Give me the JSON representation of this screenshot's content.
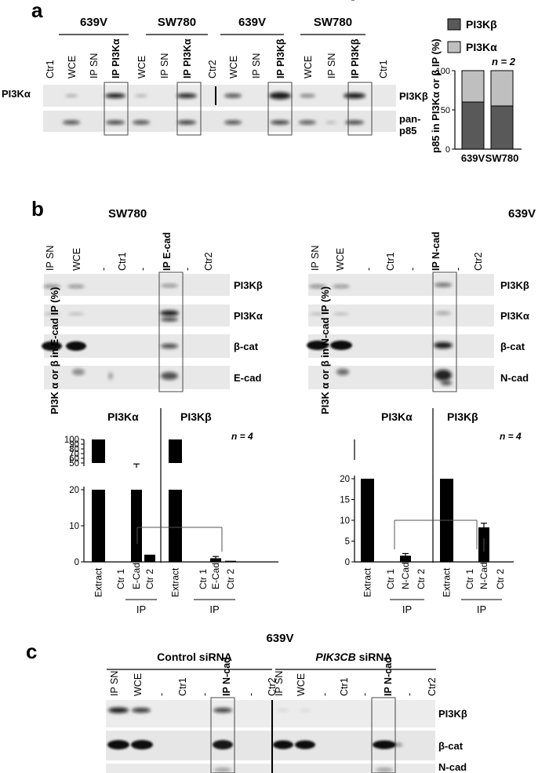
{
  "figure": {
    "panel_a": {
      "letter": "a",
      "group_labels": [
        "639V",
        "SW780",
        "639V",
        "SW780"
      ],
      "lanes": [
        "Ctr1",
        "WCE",
        "IP SN",
        "IP PI3Kα",
        "WCE",
        "IP SN",
        "IP PI3Kα",
        "Ctr2",
        "WCE",
        "IP SN",
        "IP PI3Kβ",
        "WCE",
        "IP SN",
        "IP PI3Kβ",
        "Ctr1"
      ],
      "bold_lane_indices": [
        3,
        6,
        10,
        13
      ],
      "row_labels_left": [
        "PI3Kα"
      ],
      "row_labels_right": [
        "PI3Kβ",
        "pan-",
        "p85"
      ],
      "chart_legend": [
        "PI3Kβ",
        "PI3Kα"
      ],
      "chart_ylabel": "p85 in PI3Kα or β IP (%)",
      "chart_n": "n = 2",
      "chart_colors": {
        "beta": "#595959",
        "alpha": "#bfbfbf"
      }
    },
    "panel_b": {
      "letter": "b",
      "left": {
        "cell_line": "SW780",
        "lanes": [
          "IP SN",
          "WCE",
          "-",
          "Ctr1",
          "-",
          "IP E-cad",
          "-",
          "Ctr2"
        ],
        "bold_lane_index": 5,
        "blot_labels": [
          "PI3Kβ",
          "PI3Kα",
          "β-cat",
          "E-cad"
        ],
        "chart_ylabel": "PI3K α or β in E-cad IP (%)",
        "alpha_title": "PI3Kα",
        "beta_title": "PI3Kβ",
        "n": "n = 4",
        "ip_label": "IP"
      },
      "right": {
        "cell_line": "639V",
        "lanes": [
          "IP SN",
          "WCE",
          "-",
          "Ctr1",
          "-",
          "IP N-cad",
          "-",
          "Ctr2"
        ],
        "bold_lane_index": 5,
        "blot_labels": [
          "PI3Kβ",
          "PI3Kα",
          "β-cat",
          "N-cad"
        ],
        "chart_ylabel": "PI3K α or β in N-cad IP (%)",
        "alpha_title": "PI3Kα",
        "beta_title": "PI3Kβ",
        "n": "n = 4",
        "ip_label": "IP"
      }
    },
    "panel_c": {
      "letter": "c",
      "cell_line": "639V",
      "condition_1": "Control siRNA",
      "condition_2_gene": "PIK3CB",
      "condition_2_suffix": " siRNA",
      "lanes": [
        "IP SN",
        "WCE",
        "-",
        "Ctr1",
        "-",
        "IP N-cad",
        "-",
        "Ctr2",
        "IP SN",
        "WCE",
        "-",
        "Ctr1",
        "-",
        "IP N-cad",
        "-",
        "Ctr2"
      ],
      "bold_lane_indices": [
        5,
        13
      ],
      "blot_labels": [
        "PI3Kβ",
        "β-cat",
        "N-cad"
      ]
    }
  },
  "chart_data": [
    {
      "type": "bar",
      "stacked": true,
      "categories": [
        "639V",
        "SW780"
      ],
      "series": [
        {
          "name": "PI3Kβ",
          "values": [
            60,
            55
          ]
        },
        {
          "name": "PI3Kα",
          "values": [
            40,
            45
          ]
        }
      ],
      "ylabel": "p85 in PI3Kα or β IP (%)",
      "ylim": [
        0,
        100
      ],
      "yticks": [
        "0",
        "50",
        "100"
      ],
      "legend": "top"
    },
    {
      "type": "bar",
      "categories": [
        "Extract",
        "Ctr 1",
        "E-Cad",
        "Ctr 2",
        "Extract",
        "Ctr 1",
        "E-Cad",
        "Ctr 2"
      ],
      "groups": [
        "PI3Kα",
        "PI3Kα",
        "PI3Kα",
        "PI3Kα",
        "PI3Kβ",
        "PI3Kβ",
        "PI3Kβ",
        "PI3Kβ"
      ],
      "values": [
        100,
        0,
        40,
        2,
        100,
        0,
        1,
        0.3
      ],
      "errors": [
        0,
        0,
        8,
        0,
        0,
        0,
        0.5,
        0
      ],
      "ylabel": "PI3K α or β in E-cad IP (%)",
      "ylim": [
        0,
        100
      ],
      "axis_break": [
        20,
        50
      ],
      "yticks": [
        "0",
        "10",
        "20",
        "30",
        "40",
        "50",
        "60",
        "70",
        "80",
        "90",
        "100"
      ]
    },
    {
      "type": "bar",
      "categories": [
        "Extract",
        "Ctr 1",
        "N-Cad",
        "Ctr 2",
        "Extract",
        "Ctr 1",
        "N-Cad",
        "Ctr 2"
      ],
      "groups": [
        "PI3Kα",
        "PI3Kα",
        "PI3Kα",
        "PI3Kα",
        "PI3Kβ",
        "PI3Kβ",
        "PI3Kβ",
        "PI3Kβ"
      ],
      "values": [
        100,
        0,
        1.5,
        0,
        100,
        0,
        8.3,
        0
      ],
      "errors": [
        0,
        0,
        0.5,
        0,
        0,
        0,
        1,
        0
      ],
      "ylabel": "PI3K α or β in N-cad IP (%)",
      "ylim": [
        0,
        100
      ],
      "axis_break": [
        20,
        100
      ],
      "yticks": [
        "0",
        "5",
        "10",
        "15",
        "20",
        "100"
      ]
    }
  ]
}
